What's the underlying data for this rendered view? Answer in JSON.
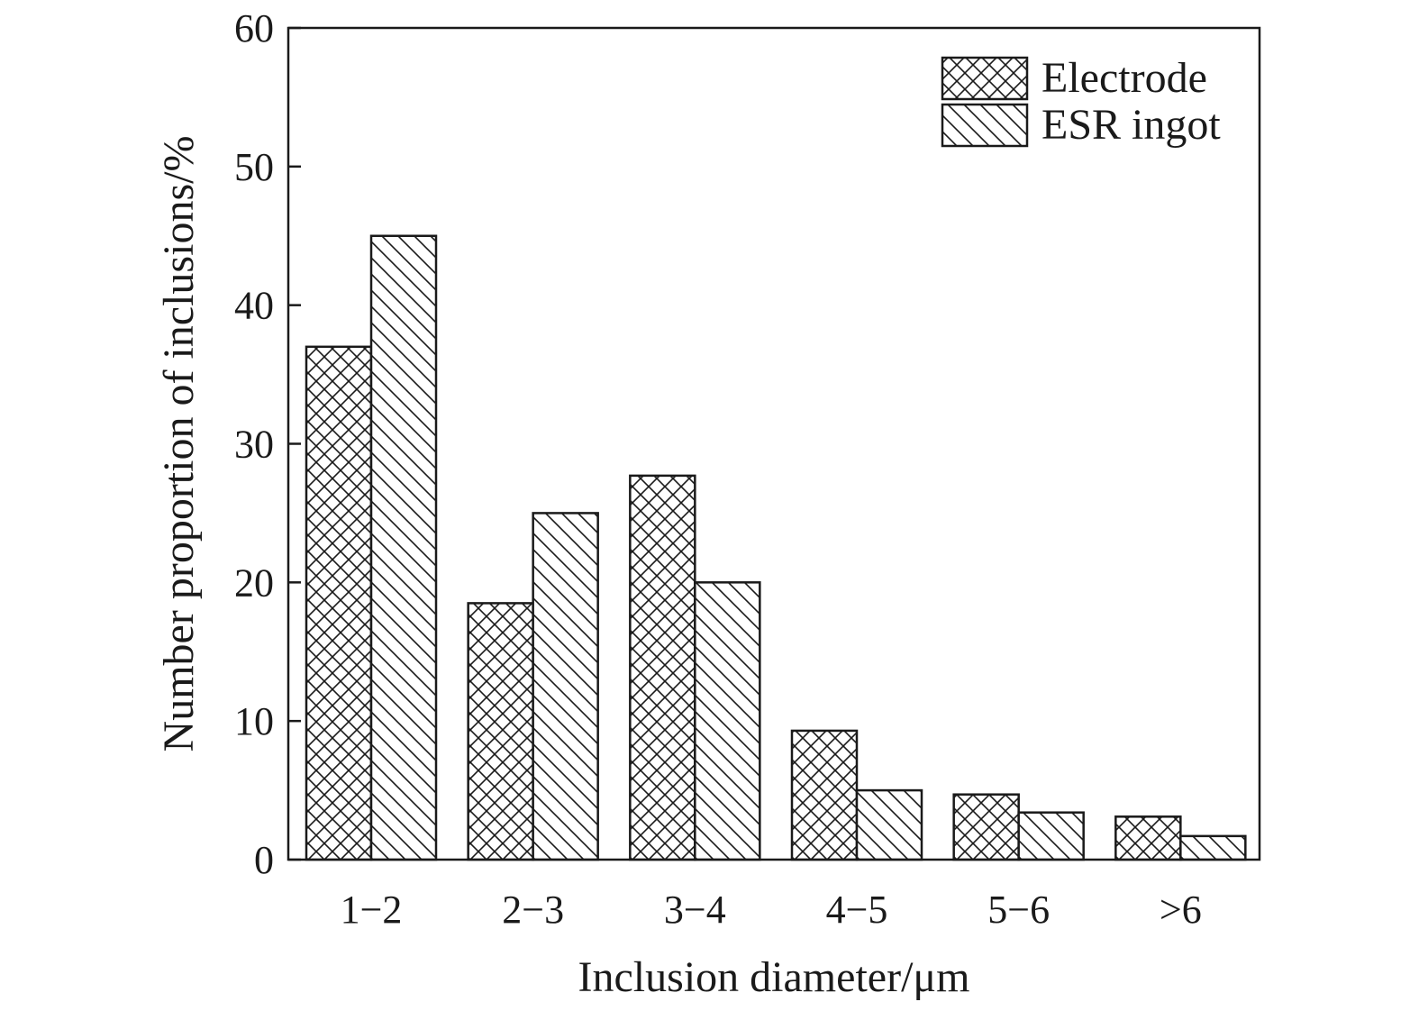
{
  "chart_data": {
    "type": "bar",
    "categories": [
      "1−2",
      "2−3",
      "3−4",
      "4−5",
      "5−6",
      ">6"
    ],
    "series": [
      {
        "name": "Electrode",
        "values": [
          37,
          18.5,
          27.7,
          9.3,
          4.7,
          3.1
        ],
        "pattern": "crosshatch"
      },
      {
        "name": "ESR ingot",
        "values": [
          45,
          25,
          20,
          5,
          3.4,
          1.7
        ],
        "pattern": "diagonal"
      }
    ],
    "title": "",
    "xlabel": "Inclusion diameter/μm",
    "ylabel": "Number proportion of inclusions/%",
    "ylim": [
      0,
      60
    ],
    "yticks": [
      0,
      10,
      20,
      30,
      40,
      50,
      60
    ],
    "grid": false,
    "legend_position": "top-right",
    "colors": {
      "stroke": "#1a1a1a",
      "fill": "#ffffff"
    }
  }
}
